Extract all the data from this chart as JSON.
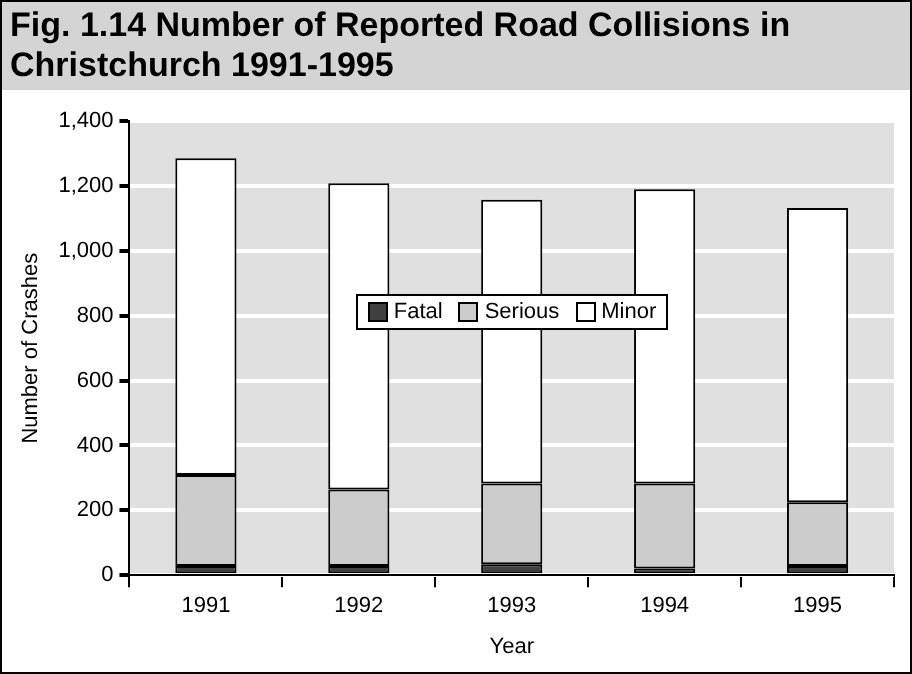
{
  "chart_data": {
    "type": "bar",
    "title": "Fig. 1.14 Number of Reported Road Collisions in Christchurch 1991-1995",
    "xlabel": "Year",
    "ylabel": "Number of Crashes",
    "categories": [
      "1991",
      "1992",
      "1993",
      "1994",
      "1995"
    ],
    "stacked": true,
    "series": [
      {
        "name": "Fatal",
        "color": "#404040",
        "values": [
          28,
          28,
          34,
          21,
          28
        ]
      },
      {
        "name": "Serious",
        "color": "#cccccc",
        "values": [
          281,
          236,
          249,
          262,
          197
        ]
      },
      {
        "name": "Minor",
        "color": "#ffffff",
        "values": [
          977,
          945,
          875,
          907,
          907
        ]
      }
    ],
    "ylim": [
      0,
      1400
    ],
    "yticks": [
      {
        "value": 0,
        "label": "0"
      },
      {
        "value": 200,
        "label": "200"
      },
      {
        "value": 400,
        "label": "400"
      },
      {
        "value": 600,
        "label": "600"
      },
      {
        "value": 800,
        "label": "800"
      },
      {
        "value": 1000,
        "label": "1,000"
      },
      {
        "value": 1200,
        "label": "1,200"
      },
      {
        "value": 1400,
        "label": "1,400"
      }
    ],
    "grid": "y",
    "legend": "center"
  }
}
